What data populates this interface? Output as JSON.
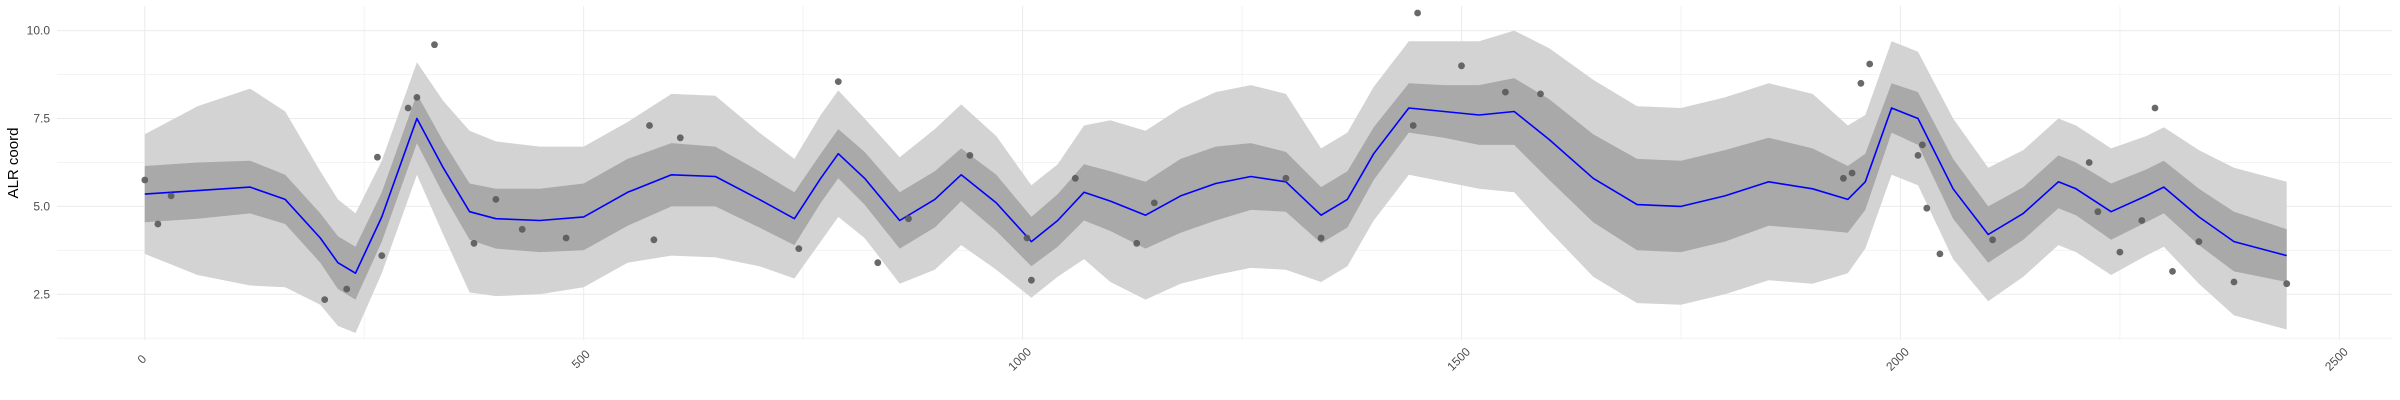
{
  "chart_data": {
    "type": "line",
    "title": "",
    "xlabel": "",
    "ylabel": "ALR coord",
    "xlim": [
      -100,
      2560
    ],
    "ylim": [
      1.2,
      10.7
    ],
    "x_ticks": [
      0,
      500,
      1000,
      1500,
      2000,
      2500
    ],
    "x_tick_labels": [
      "0",
      "500",
      "1000",
      "1500",
      "2000",
      "2500"
    ],
    "y_ticks": [
      2.5,
      5.0,
      7.5,
      10.0
    ],
    "y_tick_labels": [
      "2.5",
      "5.0",
      "7.5",
      "10.0"
    ],
    "grid": true,
    "legend": "none",
    "colors": {
      "line": "#0000ff",
      "inner_band": "#a9a9a9",
      "outer_band": "#d3d3d3",
      "points": "#595959",
      "grid": "#ebebeb"
    },
    "mean_line": {
      "x": [
        0,
        60,
        120,
        160,
        200,
        220,
        240,
        270,
        310,
        340,
        370,
        400,
        450,
        500,
        550,
        600,
        650,
        700,
        740,
        770,
        790,
        820,
        860,
        900,
        930,
        970,
        1010,
        1040,
        1070,
        1100,
        1140,
        1180,
        1220,
        1260,
        1300,
        1340,
        1370,
        1400,
        1440,
        1480,
        1520,
        1560,
        1600,
        1650,
        1700,
        1750,
        1800,
        1850,
        1900,
        1940,
        1960,
        1990,
        2020,
        2060,
        2100,
        2140,
        2180,
        2200,
        2240,
        2280,
        2300,
        2340,
        2380,
        2440
      ],
      "y": [
        5.35,
        5.45,
        5.55,
        5.2,
        4.1,
        3.4,
        3.1,
        4.7,
        7.5,
        6.1,
        4.85,
        4.65,
        4.6,
        4.7,
        5.4,
        5.9,
        5.85,
        5.2,
        4.65,
        5.8,
        6.5,
        5.8,
        4.6,
        5.2,
        5.9,
        5.1,
        4.0,
        4.6,
        5.4,
        5.15,
        4.75,
        5.3,
        5.65,
        5.85,
        5.7,
        4.75,
        5.2,
        6.5,
        7.8,
        7.7,
        7.6,
        7.7,
        6.9,
        5.8,
        5.05,
        5.0,
        5.3,
        5.7,
        5.5,
        5.2,
        5.7,
        7.8,
        7.5,
        5.5,
        4.2,
        4.8,
        5.7,
        5.5,
        4.85,
        5.3,
        5.55,
        4.7,
        4.0,
        3.6
      ],
      "inner_halfwidth": [
        0.8,
        0.8,
        0.75,
        0.7,
        0.7,
        0.75,
        0.75,
        0.7,
        0.7,
        0.75,
        0.8,
        0.85,
        0.9,
        0.95,
        0.95,
        0.9,
        0.85,
        0.8,
        0.75,
        0.7,
        0.7,
        0.75,
        0.8,
        0.8,
        0.75,
        0.8,
        0.7,
        0.75,
        0.8,
        0.85,
        0.95,
        1.05,
        1.05,
        0.95,
        0.85,
        0.8,
        0.8,
        0.75,
        0.7,
        0.75,
        0.85,
        0.95,
        1.15,
        1.25,
        1.3,
        1.3,
        1.3,
        1.25,
        1.15,
        0.95,
        0.8,
        0.7,
        0.75,
        0.85,
        0.8,
        0.75,
        0.75,
        0.75,
        0.8,
        0.75,
        0.75,
        0.8,
        0.85,
        0.75
      ],
      "outer_halfwidth": [
        1.7,
        2.4,
        2.8,
        2.5,
        1.9,
        1.8,
        1.7,
        1.6,
        1.6,
        1.9,
        2.3,
        2.2,
        2.1,
        2.0,
        2.0,
        2.3,
        2.3,
        1.9,
        1.7,
        1.8,
        1.8,
        1.7,
        1.8,
        2.0,
        2.0,
        1.9,
        1.6,
        1.6,
        1.9,
        2.3,
        2.4,
        2.5,
        2.6,
        2.6,
        2.5,
        1.9,
        1.9,
        1.9,
        1.9,
        2.0,
        2.1,
        2.3,
        2.6,
        2.8,
        2.8,
        2.8,
        2.8,
        2.8,
        2.7,
        2.1,
        1.9,
        1.9,
        1.9,
        2.0,
        1.9,
        1.8,
        1.8,
        1.8,
        1.8,
        1.7,
        1.7,
        1.9,
        2.1,
        2.1
      ]
    },
    "points": {
      "x": [
        0,
        15,
        30,
        205,
        230,
        265,
        270,
        300,
        310,
        330,
        375,
        400,
        430,
        480,
        575,
        580,
        610,
        745,
        790,
        835,
        870,
        940,
        1005,
        1010,
        1060,
        1130,
        1150,
        1300,
        1340,
        1445,
        1450,
        1500,
        1550,
        1590,
        1935,
        1945,
        1955,
        1965,
        2020,
        2025,
        2030,
        2045,
        2105,
        2215,
        2225,
        2250,
        2275,
        2290,
        2310,
        2340,
        2380,
        2440
      ],
      "y": [
        5.75,
        4.5,
        5.3,
        2.35,
        2.65,
        6.4,
        3.6,
        7.8,
        8.1,
        9.6,
        3.95,
        5.2,
        4.35,
        4.1,
        7.3,
        4.05,
        6.95,
        3.8,
        8.55,
        3.4,
        4.65,
        6.45,
        4.1,
        2.9,
        5.8,
        3.95,
        5.1,
        5.8,
        4.1,
        7.3,
        10.5,
        9.0,
        8.25,
        8.2,
        5.8,
        5.95,
        8.5,
        9.05,
        6.45,
        6.75,
        4.95,
        3.65,
        4.05,
        6.25,
        4.85,
        3.7,
        4.6,
        7.8,
        3.15,
        4.0,
        2.85,
        2.8
      ]
    }
  }
}
